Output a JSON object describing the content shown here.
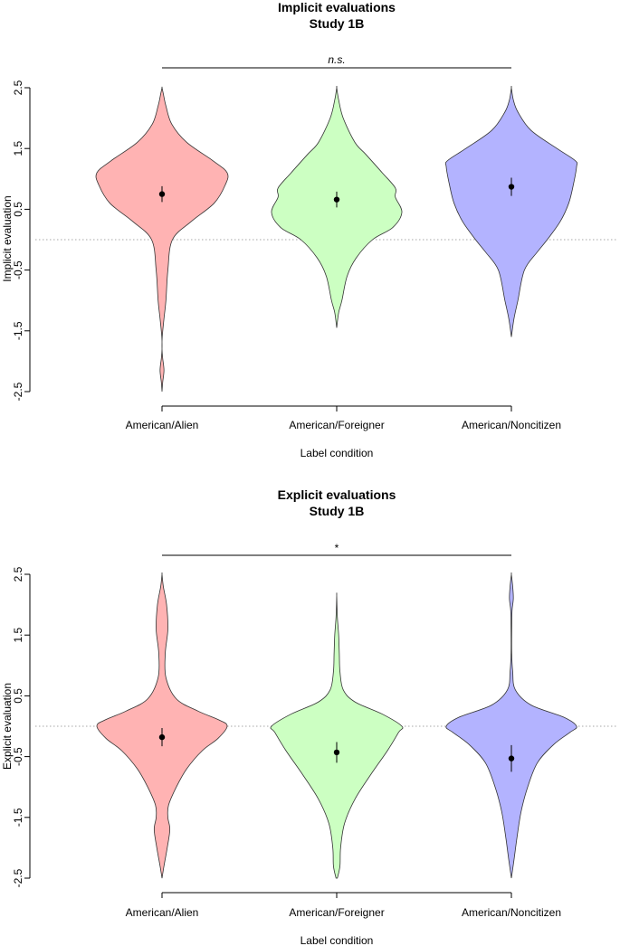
{
  "chart_data": [
    {
      "type": "violin",
      "title": "Implicit evaluations",
      "subtitle": "Study 1B",
      "xlabel": "Label condition",
      "ylabel": "Implicit evaluation",
      "ylim": [
        -2.5,
        2.5
      ],
      "yticks": [
        -2.5,
        -1.5,
        -0.5,
        0.5,
        1.5,
        2.5
      ],
      "ytick_labels": [
        "-2.5",
        "-1.5",
        "-0.5",
        "0.5",
        "1.5",
        "2.5"
      ],
      "reference_line": 0,
      "significance": "n.s.",
      "categories": [
        "American/Alien",
        "American/Foreigner",
        "American/Noncitizen"
      ],
      "colors": [
        "#ffb3b3",
        "#ccffc2",
        "#b3b3ff"
      ],
      "series": [
        {
          "category": "American/Alien",
          "mean": 0.75,
          "ci": [
            0.62,
            0.88
          ],
          "density_y": [
            -2.5,
            -2.35,
            -2.15,
            -1.95,
            -1.8,
            -1.6,
            -1.3,
            -1.0,
            -0.5,
            0.0,
            0.3,
            0.6,
            0.9,
            1.1,
            1.3,
            1.6,
            1.9,
            2.2,
            2.4,
            2.5
          ],
          "density_w": [
            0.0,
            0.01,
            0.03,
            0.01,
            0.0,
            0.003,
            0.03,
            0.06,
            0.09,
            0.16,
            0.45,
            0.8,
            0.97,
            1.0,
            0.78,
            0.38,
            0.15,
            0.06,
            0.02,
            0.0
          ]
        },
        {
          "category": "American/Foreigner",
          "mean": 0.66,
          "ci": [
            0.53,
            0.79
          ],
          "density_y": [
            -1.45,
            -1.2,
            -1.0,
            -0.6,
            -0.3,
            0.0,
            0.2,
            0.45,
            0.7,
            0.85,
            1.1,
            1.4,
            1.6,
            2.0,
            2.3,
            2.5
          ],
          "density_w": [
            0.0,
            0.03,
            0.08,
            0.16,
            0.3,
            0.55,
            0.86,
            1.0,
            0.9,
            0.9,
            0.7,
            0.45,
            0.28,
            0.1,
            0.03,
            0.0
          ],
          "density_x_note": ""
        },
        {
          "category": "American/Noncitizen",
          "mean": 0.87,
          "ci": [
            0.72,
            1.02
          ],
          "density_y": [
            -1.6,
            -1.3,
            -1.0,
            -0.5,
            -0.2,
            0.0,
            0.3,
            0.6,
            0.9,
            1.2,
            1.3,
            1.5,
            1.8,
            2.1,
            2.3,
            2.5
          ],
          "density_w": [
            0.0,
            0.04,
            0.1,
            0.2,
            0.4,
            0.55,
            0.75,
            0.88,
            0.95,
            1.0,
            0.98,
            0.7,
            0.3,
            0.1,
            0.03,
            0.0
          ]
        }
      ]
    },
    {
      "type": "violin",
      "title": "Explicit evaluations",
      "subtitle": "Study 1B",
      "xlabel": "Label condition",
      "ylabel": "Explicit evaluation",
      "ylim": [
        -2.5,
        2.5
      ],
      "yticks": [
        -2.5,
        -1.5,
        -0.5,
        0.5,
        1.5,
        2.5
      ],
      "ytick_labels": [
        "-2.5",
        "-1.5",
        "-0.5",
        "0.5",
        "1.5",
        "2.5"
      ],
      "reference_line": 0,
      "significance": "*",
      "categories": [
        "American/Alien",
        "American/Foreigner",
        "American/Noncitizen"
      ],
      "colors": [
        "#ffb3b3",
        "#ccffc2",
        "#b3b3ff"
      ],
      "series": [
        {
          "category": "American/Alien",
          "mean": -0.18,
          "ci": [
            -0.33,
            -0.03
          ],
          "density_y": [
            -2.5,
            -2.3,
            -2.0,
            -1.7,
            -1.5,
            -1.3,
            -1.0,
            -0.7,
            -0.4,
            -0.2,
            0.0,
            0.1,
            0.25,
            0.45,
            0.8,
            1.2,
            1.6,
            2.0,
            2.3,
            2.5
          ],
          "density_w": [
            0.0,
            0.03,
            0.08,
            0.12,
            0.09,
            0.1,
            0.22,
            0.38,
            0.62,
            0.86,
            1.0,
            0.88,
            0.55,
            0.22,
            0.06,
            0.05,
            0.09,
            0.07,
            0.02,
            0.0
          ]
        },
        {
          "category": "American/Foreigner",
          "mean": -0.43,
          "ci": [
            -0.6,
            -0.26
          ],
          "density_y": [
            -2.5,
            -2.3,
            -2.0,
            -1.6,
            -1.2,
            -0.8,
            -0.4,
            -0.1,
            0.0,
            0.2,
            0.4,
            0.6,
            0.9,
            1.2,
            1.5,
            1.8,
            2.15
          ],
          "density_w": [
            0.01,
            0.05,
            0.06,
            0.12,
            0.28,
            0.52,
            0.78,
            0.95,
            1.0,
            0.7,
            0.28,
            0.1,
            0.05,
            0.04,
            0.03,
            0.01,
            0.0
          ]
        },
        {
          "category": "American/Noncitizen",
          "mean": -0.53,
          "ci": [
            -0.75,
            -0.31
          ],
          "density_y": [
            -2.5,
            -2.2,
            -1.8,
            -1.4,
            -1.0,
            -0.6,
            -0.3,
            -0.1,
            0.0,
            0.15,
            0.35,
            0.6,
            0.9,
            1.2,
            1.6,
            1.9,
            2.1,
            2.3,
            2.5
          ],
          "density_w": [
            0.0,
            0.04,
            0.09,
            0.15,
            0.25,
            0.4,
            0.65,
            0.9,
            1.0,
            0.8,
            0.3,
            0.06,
            0.02,
            0.005,
            0.005,
            0.01,
            0.03,
            0.02,
            0.0
          ]
        }
      ]
    }
  ]
}
